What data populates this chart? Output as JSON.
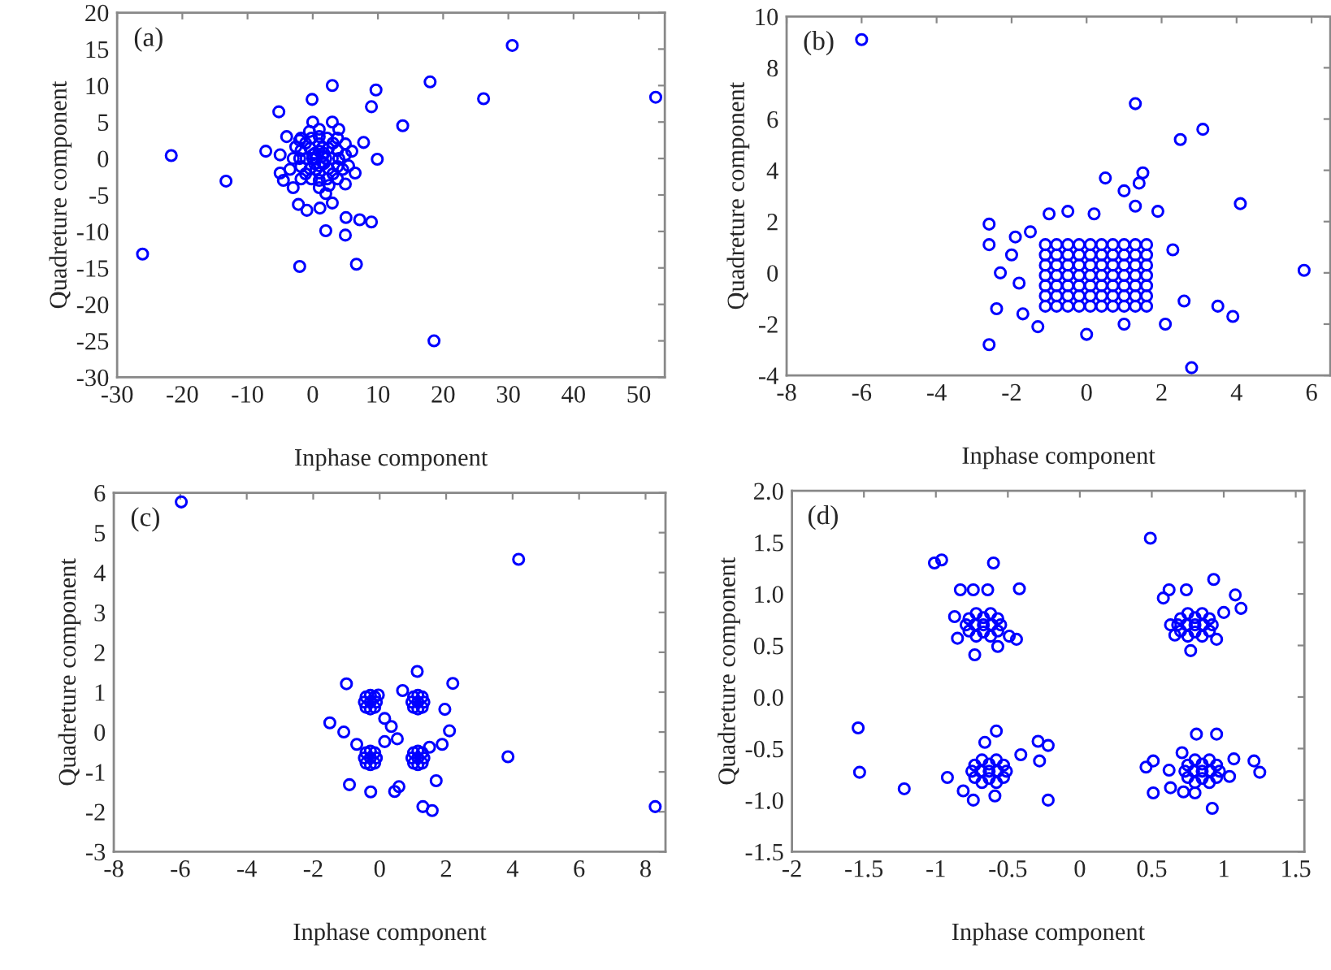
{
  "chart_data": [
    {
      "type": "scatter",
      "xlabel": "Inphase component",
      "ylabel": "Quadreture component",
      "annotations": [
        "(a)"
      ],
      "marker": "circle",
      "grid": false,
      "legend": false,
      "xlim": [
        -30,
        54
      ],
      "xticks": [
        -30,
        -20,
        -10,
        0,
        10,
        20,
        30,
        40,
        50
      ],
      "ylim": [
        -30,
        20
      ],
      "yticks": [
        -30,
        -25,
        -20,
        -15,
        -10,
        -5,
        0,
        5,
        10,
        15,
        20
      ],
      "series": [
        {
          "color": "#0000ff",
          "x": [
            -26.1,
            -21.7,
            -13.3,
            30.6,
            18.0,
            26.2,
            52.6,
            18.6,
            13.8,
            3.0,
            9.7,
            9.0,
            -0.1,
            -5.2,
            -2.0,
            6.7,
            2.0,
            5.0,
            9.0,
            7.2,
            5.1,
            -0.9,
            -2.2,
            1.1,
            3.0,
            -7.2,
            9.9,
            7.8,
            2,
            1,
            0,
            1,
            1.7,
            0.3,
            0.3,
            1.7,
            3,
            1,
            -1,
            1,
            2.4,
            -0.4,
            -0.4,
            2.4,
            4,
            1,
            -2,
            1,
            3.1,
            -1.1,
            -1.1,
            3.1,
            2.2,
            -0.2,
            -0.2,
            2.2,
            3.8,
            -1.8,
            -1.8,
            3.8,
            5,
            1,
            -3,
            1,
            3.8,
            -1.8,
            -1.8,
            3.8,
            4.6,
            -2.6,
            2.5,
            -0.5,
            0,
            1.5,
            0.5,
            1.5,
            0.5,
            1.5,
            -2,
            5,
            -3.5,
            5.5,
            4,
            -4,
            0,
            3,
            -4.5,
            2,
            -3,
            5,
            6,
            -5,
            6.5,
            -5
          ],
          "values": [
            -13.1,
            0.4,
            -3.1,
            15.5,
            10.5,
            8.2,
            8.4,
            -25.0,
            4.5,
            10.0,
            9.4,
            7.1,
            8.1,
            6.4,
            -14.8,
            -14.5,
            -9.9,
            -10.5,
            -8.7,
            -8.4,
            -8.1,
            -7.1,
            -6.3,
            -6.8,
            -6.1,
            1.0,
            -0.1,
            2.2,
            0,
            1,
            0,
            -1,
            0.7,
            0.7,
            -0.7,
            -0.7,
            0,
            2,
            0,
            -2,
            1.4,
            1.4,
            -1.4,
            -1.4,
            0,
            3,
            0,
            -3,
            2.1,
            2.1,
            -2.1,
            -2.1,
            2.8,
            2.8,
            -2.8,
            -2.8,
            1.1,
            1.1,
            -1.1,
            -1.1,
            0.5,
            4,
            0,
            -4,
            2.8,
            2.8,
            -2.8,
            -2.8,
            -1.5,
            1.6,
            -3.7,
            3.7,
            0.5,
            0.3,
            0,
            -0.5,
            -1.5,
            1.5,
            2.5,
            2,
            -1.5,
            -1,
            4,
            3,
            5,
            5,
            -3,
            -4.8,
            -4,
            -3.5,
            1,
            0.5,
            -2,
            -2
          ]
        }
      ]
    },
    {
      "type": "scatter",
      "xlabel": "Inphase component",
      "ylabel": "Quadreture component",
      "annotations": [
        "(b)"
      ],
      "marker": "circle",
      "grid": false,
      "legend": false,
      "xlim": [
        -8,
        6.5
      ],
      "xticks": [
        -8,
        -6,
        -4,
        -2,
        0,
        2,
        4,
        6
      ],
      "ylim": [
        -4,
        10
      ],
      "yticks": [
        -4,
        -2,
        0,
        2,
        4,
        6,
        8,
        10
      ],
      "series": [
        {
          "color": "#0000ff",
          "x": [
            -6.0,
            1.3,
            2.5,
            3.1,
            0.5,
            1.5,
            1.4,
            1.0,
            4.1,
            5.8,
            -2.6,
            -2.6,
            -2.3,
            -2.4,
            -2.6,
            2.8,
            3.5,
            3.9,
            -1.7,
            -1.3,
            0.0,
            1.0,
            2.1,
            2.6,
            2.3,
            -1.0,
            -0.5,
            0.2,
            1.3,
            1.9,
            -1.9,
            -2.0,
            -1.8,
            -1.5,
            -1.1,
            -0.8,
            -0.5,
            -0.2,
            0.1,
            0.4,
            0.7,
            1.0,
            1.3,
            1.6,
            -1.1,
            -0.8,
            -0.5,
            -0.2,
            0.1,
            0.4,
            0.7,
            1.0,
            1.3,
            1.6,
            -1.1,
            -0.8,
            -0.5,
            -0.2,
            0.1,
            0.4,
            0.7,
            1.0,
            1.3,
            1.6,
            -1.1,
            -0.8,
            -0.5,
            -0.2,
            0.1,
            0.4,
            0.7,
            1.0,
            1.3,
            1.6,
            -1.1,
            -0.8,
            -0.5,
            -0.2,
            0.1,
            0.4,
            0.7,
            1.0,
            1.3,
            1.6,
            -1.1,
            -0.8,
            -0.5,
            -0.2,
            0.1,
            0.4,
            0.7,
            1.0,
            1.3,
            1.6,
            -1.1,
            -0.8,
            -0.5,
            -0.2,
            0.1,
            0.4,
            0.7,
            1.0,
            1.3,
            1.6
          ],
          "values": [
            9.1,
            6.6,
            5.2,
            5.6,
            3.7,
            3.9,
            3.5,
            3.2,
            2.7,
            0.1,
            1.9,
            1.1,
            0.0,
            -1.4,
            -2.8,
            -3.7,
            -1.3,
            -1.7,
            -1.6,
            -2.1,
            -2.4,
            -2.0,
            -2.0,
            -1.1,
            0.9,
            2.3,
            2.4,
            2.3,
            2.6,
            2.4,
            1.4,
            0.7,
            -0.4,
            1.6,
            1.1,
            1.1,
            1.1,
            1.1,
            1.1,
            1.1,
            1.1,
            1.1,
            1.1,
            1.1,
            0.7,
            0.7,
            0.7,
            0.7,
            0.7,
            0.7,
            0.7,
            0.7,
            0.7,
            0.7,
            0.3,
            0.3,
            0.3,
            0.3,
            0.3,
            0.3,
            0.3,
            0.3,
            0.3,
            0.3,
            -0.1,
            -0.1,
            -0.1,
            -0.1,
            -0.1,
            -0.1,
            -0.1,
            -0.1,
            -0.1,
            -0.1,
            -0.5,
            -0.5,
            -0.5,
            -0.5,
            -0.5,
            -0.5,
            -0.5,
            -0.5,
            -0.5,
            -0.5,
            -0.9,
            -0.9,
            -0.9,
            -0.9,
            -0.9,
            -0.9,
            -0.9,
            -0.9,
            -0.9,
            -0.9,
            -1.3,
            -1.3,
            -1.3,
            -1.3,
            -1.3,
            -1.3,
            -1.3,
            -1.3,
            -1.3,
            -1.3
          ]
        }
      ]
    },
    {
      "type": "scatter",
      "xlabel": "Inphase component",
      "ylabel": "Quadreture component",
      "annotations": [
        "(c)"
      ],
      "marker": "circle",
      "grid": false,
      "legend": false,
      "xlim": [
        -8,
        8.6
      ],
      "xticks": [
        -8,
        -6,
        -4,
        -2,
        0,
        2,
        4,
        6,
        8
      ],
      "ylim": [
        -3,
        6
      ],
      "yticks": [
        -3,
        -2,
        -1,
        0,
        1,
        2,
        3,
        4,
        5,
        6
      ],
      "series": [
        {
          "color": "#0000ff",
          "x": [
            -5.97,
            4.18,
            3.86,
            8.29,
            -1.5,
            -1.08,
            -1.0,
            2.2,
            1.96,
            2.1,
            1.88,
            1.7,
            1.3,
            1.58,
            -0.91,
            -0.27,
            0.58,
            0.45,
            1.13,
            0.15,
            0.35,
            0.15,
            0.53,
            -0.04,
            0.69,
            -0.69,
            1.5,
            -0.28,
            -0.1,
            -0.46,
            -0.28,
            -0.28,
            -0.15,
            -0.41,
            -0.15,
            -0.41,
            1.15,
            1.33,
            0.97,
            1.15,
            1.15,
            1.28,
            1.02,
            1.28,
            1.02,
            -0.28,
            -0.1,
            -0.46,
            -0.28,
            -0.28,
            -0.15,
            -0.41,
            -0.15,
            -0.41,
            1.15,
            1.33,
            0.97,
            1.15,
            1.15,
            1.28,
            1.02,
            1.28,
            1.02
          ],
          "values": [
            5.77,
            4.33,
            -0.62,
            -1.87,
            0.23,
            0.0,
            1.21,
            1.22,
            0.57,
            0.03,
            -0.31,
            -1.22,
            -1.87,
            -1.97,
            -1.32,
            -1.5,
            -1.37,
            -1.49,
            1.52,
            0.34,
            0.14,
            -0.24,
            -0.17,
            0.93,
            1.04,
            -0.31,
            -0.38,
            0.75,
            0.75,
            0.75,
            0.92,
            0.58,
            0.88,
            0.88,
            0.62,
            0.62,
            0.75,
            0.75,
            0.75,
            0.92,
            0.58,
            0.88,
            0.88,
            0.62,
            0.62,
            -0.65,
            -0.65,
            -0.65,
            -0.48,
            -0.82,
            -0.52,
            -0.52,
            -0.78,
            -0.78,
            -0.65,
            -0.65,
            -0.65,
            -0.48,
            -0.82,
            -0.52,
            -0.52,
            -0.78,
            -0.78
          ]
        }
      ]
    },
    {
      "type": "scatter",
      "xlabel": "Inphase component",
      "ylabel": "Quadreture component",
      "annotations": [
        "(d)"
      ],
      "marker": "circle",
      "grid": false,
      "legend": false,
      "xlim": [
        -2,
        1.56
      ],
      "xticks": [
        -2,
        -1.5,
        -1,
        -0.5,
        0,
        0.5,
        1,
        1.5
      ],
      "ylim": [
        -1.5,
        2.0
      ],
      "yticks": [
        {
          "value": -1.5,
          "label": "-1.5"
        },
        {
          "value": -1.0,
          "label": "-1.0"
        },
        {
          "value": -0.5,
          "label": "-0.5"
        },
        {
          "value": 0.0,
          "label": "0.0"
        },
        {
          "value": 0.5,
          "label": "0.5"
        },
        {
          "value": 1.0,
          "label": "1.0"
        },
        {
          "value": 1.5,
          "label": "1.5"
        },
        {
          "value": 2.0,
          "label": "2.0"
        }
      ],
      "series": [
        {
          "color": "#0000ff",
          "x": [
            -1.01,
            -0.96,
            -0.6,
            -0.42,
            -0.83,
            -0.74,
            -0.64,
            -0.87,
            -0.85,
            -0.73,
            -0.57,
            -0.44,
            -0.49,
            0.49,
            0.93,
            0.62,
            0.74,
            1.08,
            1.12,
            0.58,
            0.63,
            0.66,
            0.77,
            0.95,
            1.0,
            -1.54,
            -1.53,
            -1.22,
            -0.92,
            -0.81,
            -0.74,
            -0.59,
            -0.58,
            -0.66,
            -0.29,
            -0.22,
            -0.28,
            -0.22,
            -0.41,
            0.46,
            0.51,
            0.51,
            0.63,
            0.72,
            0.8,
            0.92,
            0.81,
            0.95,
            1.07,
            1.04,
            1.21,
            1.25,
            0.62,
            0.71,
            -0.67,
            -0.61,
            -0.73,
            -0.67,
            -0.67,
            -0.57,
            -0.77,
            -0.57,
            -0.77,
            -0.62,
            -0.72,
            -0.62,
            -0.72,
            -0.55,
            -0.79,
            0.8,
            0.86,
            0.74,
            0.8,
            0.8,
            0.9,
            0.7,
            0.9,
            0.7,
            0.85,
            0.75,
            0.85,
            0.75,
            0.92,
            0.68,
            -0.63,
            -0.57,
            -0.69,
            -0.63,
            -0.63,
            -0.53,
            -0.73,
            -0.53,
            -0.73,
            -0.58,
            -0.68,
            -0.58,
            -0.68,
            -0.51,
            -0.75,
            0.85,
            0.91,
            0.79,
            0.85,
            0.85,
            0.95,
            0.75,
            0.95,
            0.75,
            0.9,
            0.8,
            0.9,
            0.8,
            0.97,
            0.73
          ],
          "values": [
            1.3,
            1.33,
            1.3,
            1.05,
            1.04,
            1.04,
            1.04,
            0.78,
            0.57,
            0.41,
            0.49,
            0.56,
            0.59,
            1.54,
            1.14,
            1.04,
            1.04,
            0.99,
            0.86,
            0.96,
            0.7,
            0.6,
            0.45,
            0.56,
            0.82,
            -0.3,
            -0.73,
            -0.89,
            -0.78,
            -0.91,
            -1.0,
            -0.96,
            -0.33,
            -0.44,
            -0.43,
            -0.47,
            -0.62,
            -1.0,
            -0.56,
            -0.68,
            -0.62,
            -0.93,
            -0.88,
            -0.92,
            -0.93,
            -1.08,
            -0.36,
            -0.36,
            -0.6,
            -0.77,
            -0.62,
            -0.73,
            -0.71,
            -0.54,
            0.7,
            0.7,
            0.7,
            0.77,
            0.63,
            0.76,
            0.76,
            0.64,
            0.64,
            0.81,
            0.81,
            0.59,
            0.59,
            0.7,
            0.7,
            0.7,
            0.7,
            0.7,
            0.77,
            0.63,
            0.76,
            0.76,
            0.64,
            0.64,
            0.81,
            0.81,
            0.59,
            0.59,
            0.7,
            0.7,
            -0.72,
            -0.72,
            -0.72,
            -0.65,
            -0.79,
            -0.66,
            -0.66,
            -0.78,
            -0.78,
            -0.61,
            -0.61,
            -0.83,
            -0.83,
            -0.72,
            -0.72,
            -0.72,
            -0.72,
            -0.72,
            -0.65,
            -0.79,
            -0.66,
            -0.66,
            -0.78,
            -0.78,
            -0.61,
            -0.61,
            -0.83,
            -0.83,
            -0.72,
            -0.72
          ]
        }
      ]
    }
  ]
}
